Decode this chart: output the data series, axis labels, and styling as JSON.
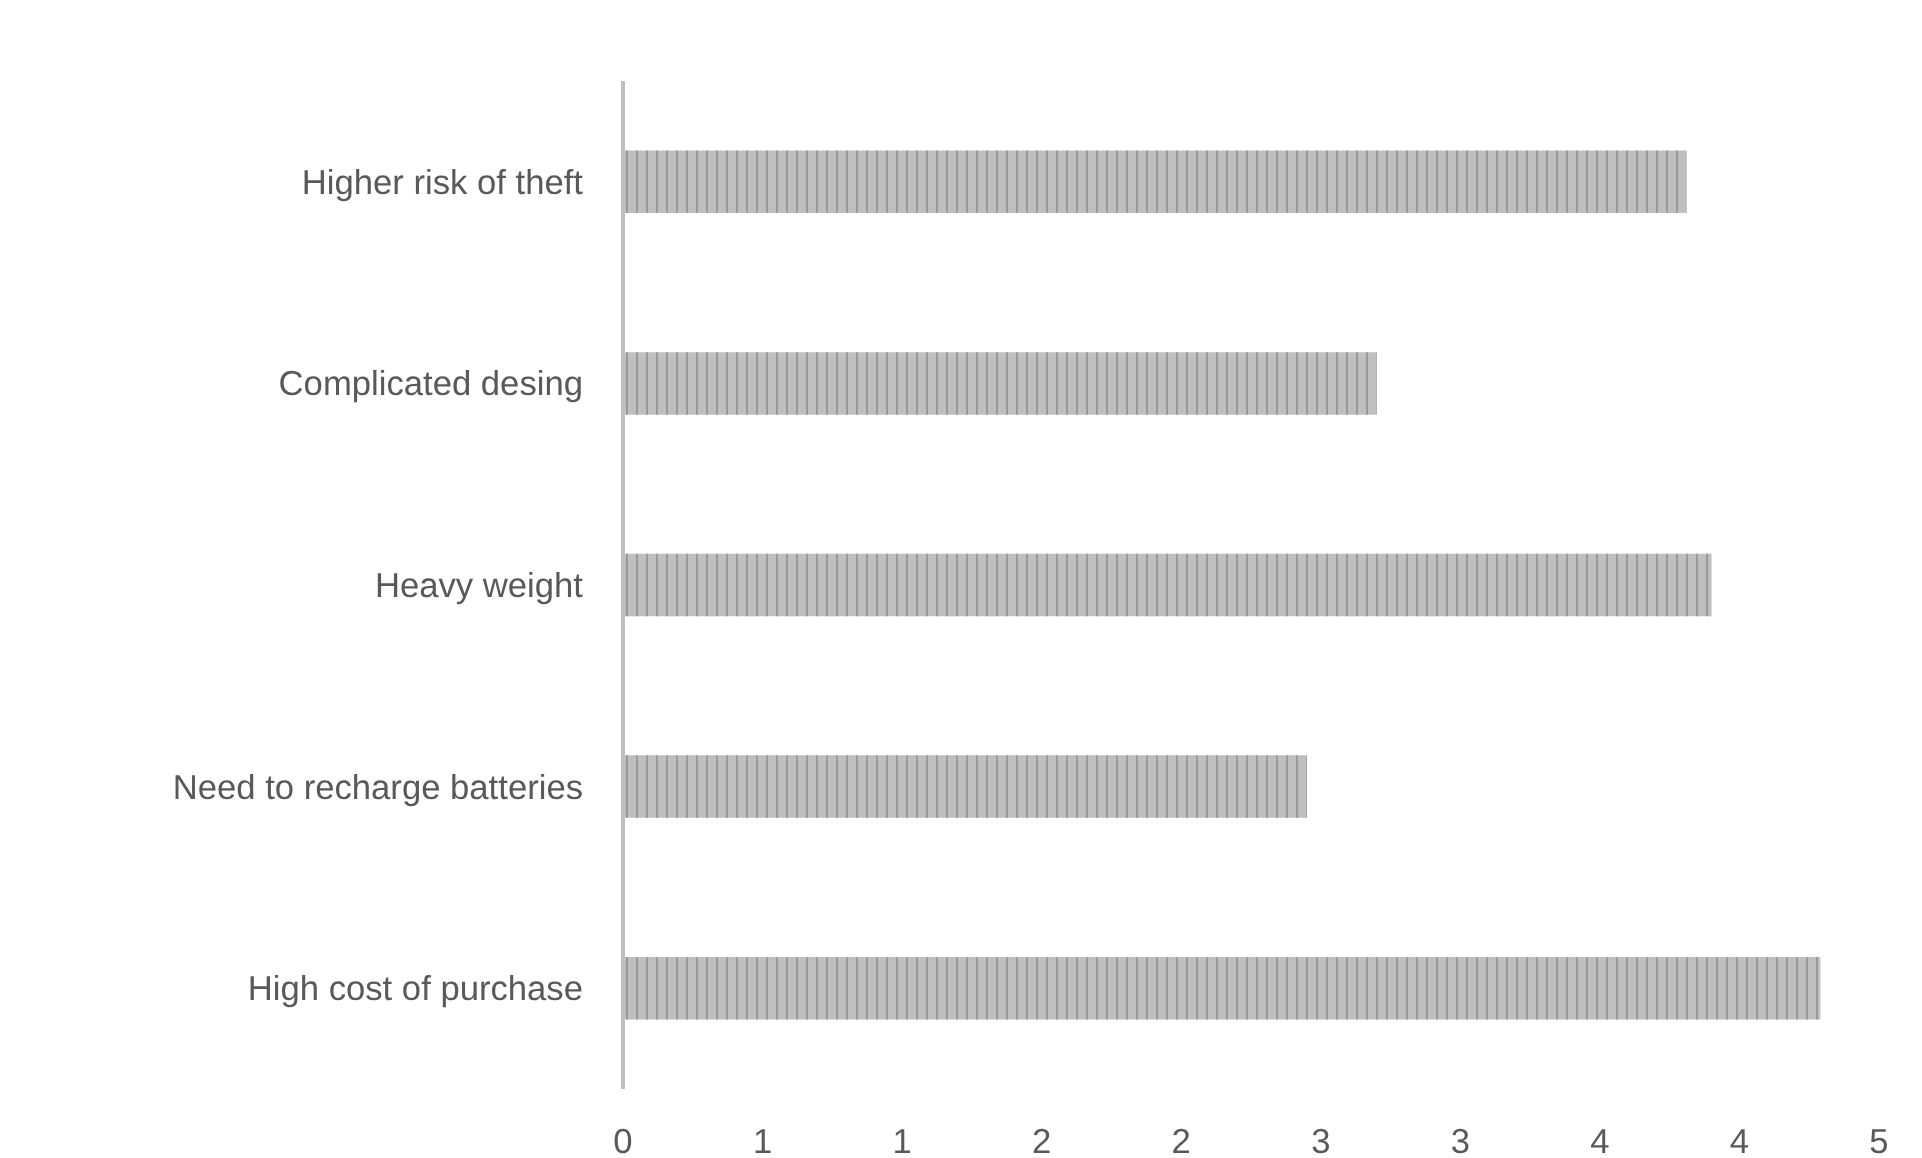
{
  "chart_data": {
    "type": "bar",
    "orientation": "horizontal",
    "categories": [
      "Higher risk of theft",
      "Complicated desing",
      "Heavy weight",
      "Need to recharge batteries",
      "High cost of purchase"
    ],
    "values": [
      3.81,
      2.7,
      3.9,
      2.45,
      4.29
    ],
    "color": "#bfbfbf",
    "xlim": [
      0,
      4.5
    ],
    "xticks": [
      0,
      {
        "value": 0.5,
        "label": "1"
      },
      1,
      {
        "value": 1.5,
        "label": "2"
      },
      2,
      {
        "value": 2.5,
        "label": "3"
      },
      3,
      {
        "value": 3.5,
        "label": "4"
      },
      4,
      {
        "value": 4.5,
        "label": "5"
      }
    ],
    "grid": false
  }
}
